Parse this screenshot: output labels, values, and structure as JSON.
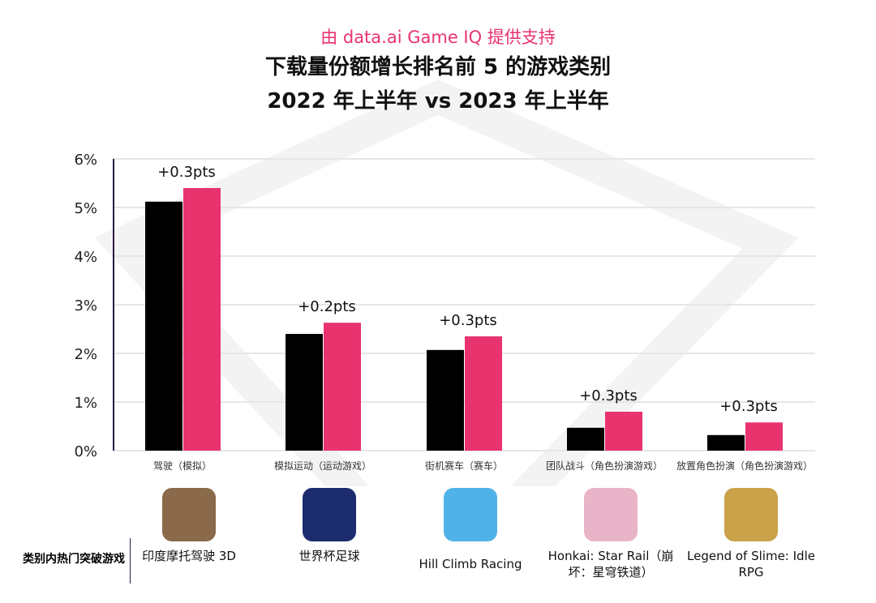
{
  "subtitle": "由 data.ai Game IQ 提供支持",
  "title_line1": "下载量份额增长排名前 5 的游戏类别",
  "title_line2": "2022 年上半年 vs 2023 年上半年",
  "row_label": "类别内热门突破游戏",
  "chart_data": {
    "type": "bar",
    "title": "下载量份额增长排名前 5 的游戏类别 2022 年上半年 vs 2023 年上半年",
    "categories": [
      "驾驶（模拟）",
      "模拟运动（运动游戏）",
      "街机赛车（赛车）",
      "团队战斗（角色扮演游戏）",
      "放置角色扮演（角色扮演游戏）"
    ],
    "series": [
      {
        "values": [
          5.12,
          2.4,
          2.07,
          0.47,
          0.32
        ],
        "color": "#000000"
      },
      {
        "values": [
          5.4,
          2.63,
          2.35,
          0.8,
          0.58
        ],
        "color": "#e8336f"
      }
    ],
    "annotations": [
      "+0.3pts",
      "+0.2pts",
      "+0.3pts",
      "+0.3pts",
      "+0.3pts"
    ],
    "yticks": [
      "0%",
      "1%",
      "2%",
      "3%",
      "4%",
      "5%",
      "6%"
    ],
    "ylim": [
      0,
      6
    ],
    "grid": true,
    "legend": "none"
  },
  "games": [
    {
      "name": "印度摩托驾驶 3D",
      "color": "#8a6a4a"
    },
    {
      "name": "世界杯足球",
      "color": "#1c2c6e"
    },
    {
      "name": "Hill Climb Racing",
      "color": "#4fb3e8"
    },
    {
      "name": "Honkai: Star Rail（崩坏：星穹铁道）",
      "color": "#e9b4c8"
    },
    {
      "name": "Legend of Slime: Idle RPG",
      "color": "#c9a24a"
    }
  ]
}
